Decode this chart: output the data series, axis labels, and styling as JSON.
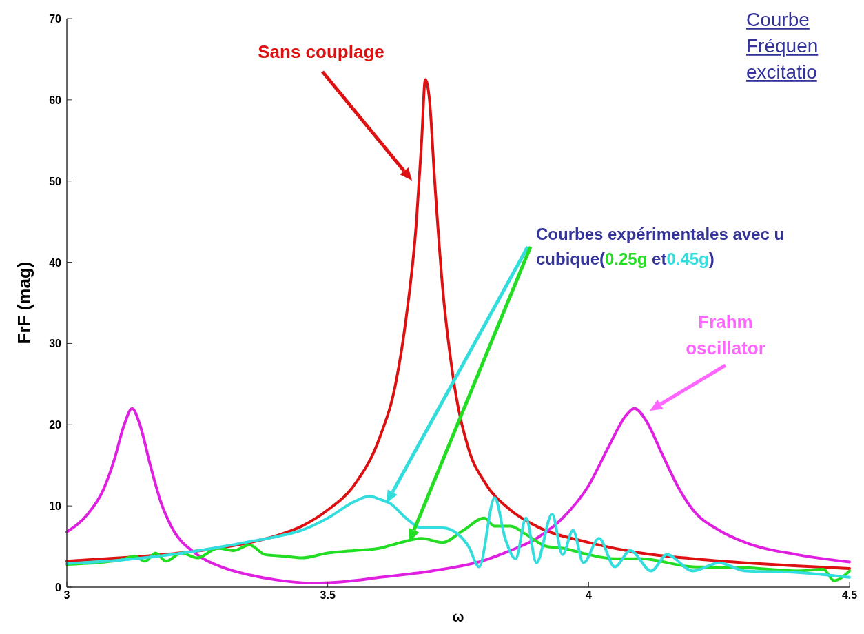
{
  "chart_data": {
    "type": "line",
    "xlabel": "ω",
    "ylabel": "FrF (mag)",
    "xlim": [
      3,
      4.5
    ],
    "ylim": [
      0,
      70
    ],
    "xticks": [
      3,
      3.5,
      4,
      4.5
    ],
    "yticks": [
      0,
      10,
      20,
      30,
      40,
      50,
      60,
      70
    ],
    "grid": false,
    "marker": "none",
    "line_style": "solid",
    "annotations": [
      "Courbe\nFréquen\nexcitatio",
      "Courbes expérimentales avec u",
      "cubique(",
      "et",
      ")"
    ],
    "series": [
      {
        "name": "Sans couplage",
        "color": "#dd1111",
        "x": [
          3,
          3.1,
          3.2,
          3.3,
          3.4,
          3.45,
          3.5,
          3.55,
          3.6,
          3.63,
          3.65,
          3.67,
          3.68,
          3.687,
          3.695,
          3.705,
          3.72,
          3.74,
          3.77,
          3.8,
          3.85,
          3.9,
          4,
          4.1,
          4.2,
          4.3,
          4.4,
          4.5
        ],
        "values": [
          3.2,
          3.6,
          4.1,
          4.9,
          6.3,
          7.5,
          9.5,
          12.5,
          18.5,
          25,
          33,
          45,
          55,
          62.5,
          60,
          50,
          37,
          26,
          17,
          13,
          9.5,
          7.5,
          5.5,
          4.2,
          3.5,
          3,
          2.6,
          2.3
        ]
      },
      {
        "name": "Frahm\noscillator",
        "color": "#e020e0",
        "x": [
          3,
          3.04,
          3.07,
          3.09,
          3.11,
          3.125,
          3.14,
          3.16,
          3.18,
          3.2,
          3.25,
          3.3,
          3.35,
          3.4,
          3.47,
          3.55,
          3.6,
          3.7,
          3.8,
          3.85,
          3.9,
          3.95,
          4,
          4.04,
          4.07,
          4.088,
          4.11,
          4.14,
          4.17,
          4.2,
          4.25,
          4.3,
          4.4,
          4.5
        ],
        "values": [
          6.8,
          9,
          12,
          15.5,
          20,
          22,
          20,
          15,
          10.5,
          7.5,
          4,
          2.4,
          1.5,
          0.9,
          0.5,
          0.8,
          1.2,
          2,
          3.3,
          4.5,
          6,
          8.5,
          12.5,
          17.5,
          21,
          22,
          20.5,
          16.5,
          12.5,
          9.5,
          7,
          5.5,
          4,
          3.1
        ]
      },
      {
        "name": "0.25g",
        "color": "#22dd22",
        "x": [
          3,
          3.1,
          3.13,
          3.15,
          3.17,
          3.19,
          3.22,
          3.25,
          3.29,
          3.32,
          3.35,
          3.38,
          3.42,
          3.45,
          3.5,
          3.55,
          3.6,
          3.64,
          3.68,
          3.72,
          3.76,
          3.8,
          3.82,
          3.85,
          3.88,
          3.92,
          3.95,
          4,
          4.05,
          4.1,
          4.2,
          4.3,
          4.4,
          4.45,
          4.47,
          4.5
        ],
        "values": [
          2.8,
          3.3,
          3.8,
          3.2,
          4.2,
          3.2,
          4.2,
          3.6,
          4.8,
          4.5,
          5.2,
          4,
          3.8,
          3.6,
          4.2,
          4.5,
          4.8,
          5.5,
          6,
          5.5,
          7,
          8.5,
          7.5,
          7.5,
          6.5,
          5,
          4.8,
          4,
          3.5,
          3.5,
          2.5,
          2.4,
          2,
          2.2,
          0.8,
          2
        ]
      },
      {
        "name": "0.45g",
        "color": "#33dddd",
        "x": [
          3,
          3.1,
          3.2,
          3.3,
          3.35,
          3.4,
          3.45,
          3.5,
          3.55,
          3.58,
          3.6,
          3.62,
          3.65,
          3.68,
          3.72,
          3.75,
          3.77,
          3.79,
          3.82,
          3.84,
          3.86,
          3.88,
          3.9,
          3.93,
          3.95,
          3.97,
          3.99,
          4.02,
          4.05,
          4.08,
          4.12,
          4.15,
          4.2,
          4.25,
          4.3,
          4.4,
          4.5
        ],
        "values": [
          2.9,
          3.3,
          4,
          5,
          5.6,
          6.2,
          7,
          8.5,
          10.5,
          11.2,
          10.8,
          10.3,
          8.5,
          7.3,
          7.3,
          6.5,
          5,
          2.5,
          11,
          6,
          3.5,
          8.5,
          3,
          9,
          4,
          7,
          3,
          6,
          2.5,
          4.5,
          2,
          4,
          2,
          3,
          2,
          1.8,
          1.2
        ]
      }
    ]
  }
}
